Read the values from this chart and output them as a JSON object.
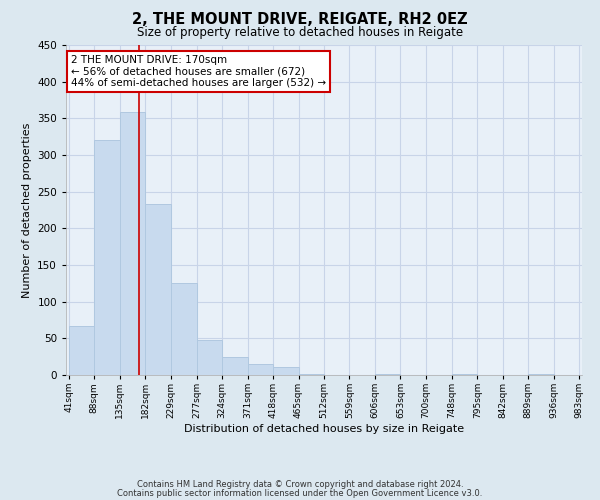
{
  "title": "2, THE MOUNT DRIVE, REIGATE, RH2 0EZ",
  "subtitle": "Size of property relative to detached houses in Reigate",
  "xlabel": "Distribution of detached houses by size in Reigate",
  "ylabel": "Number of detached properties",
  "footer_line1": "Contains HM Land Registry data © Crown copyright and database right 2024.",
  "footer_line2": "Contains public sector information licensed under the Open Government Licence v3.0.",
  "bar_edges": [
    41,
    88,
    135,
    182,
    229,
    277,
    324,
    371,
    418,
    465,
    512,
    559,
    606,
    653,
    700,
    748,
    795,
    842,
    889,
    936,
    983
  ],
  "bar_heights": [
    67,
    320,
    358,
    233,
    126,
    48,
    25,
    15,
    11,
    2,
    0,
    0,
    2,
    0,
    0,
    1,
    0,
    0,
    1,
    0
  ],
  "bar_color": "#c8daee",
  "bar_edge_color": "#b0c8e0",
  "property_line_x": 170,
  "property_line_color": "#cc0000",
  "ylim": [
    0,
    450
  ],
  "yticks": [
    0,
    50,
    100,
    150,
    200,
    250,
    300,
    350,
    400,
    450
  ],
  "annotation_title": "2 THE MOUNT DRIVE: 170sqm",
  "annotation_line1": "← 56% of detached houses are smaller (672)",
  "annotation_line2": "44% of semi-detached houses are larger (532) →",
  "annotation_box_color": "#ffffff",
  "annotation_box_edge": "#cc0000",
  "grid_color": "#c8d4e8",
  "bg_color": "#dce8f0",
  "plot_bg_color": "#e8f0f8"
}
